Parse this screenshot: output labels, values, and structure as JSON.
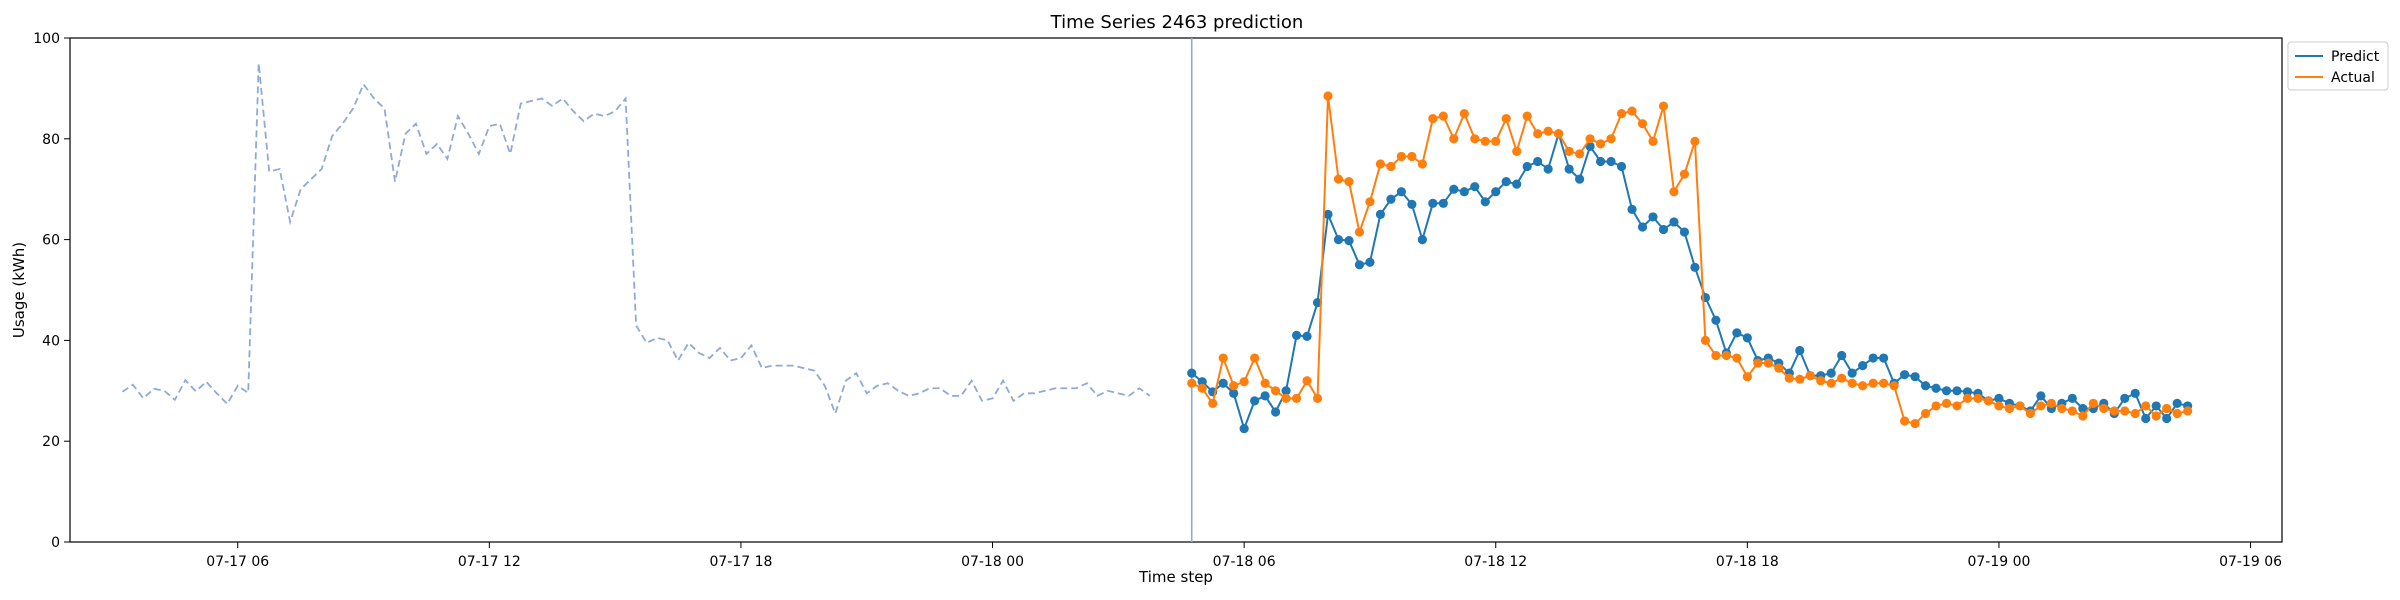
{
  "chart_data": {
    "type": "line",
    "title": "Time Series 2463 prediction",
    "xlabel": "Time step",
    "ylabel": "Usage (kWh)",
    "ylim": [
      0,
      100
    ],
    "xlim": [
      "2024-07-17 02:00",
      "2024-07-19 06:45"
    ],
    "y_ticks": [
      0,
      20,
      40,
      60,
      80,
      100
    ],
    "x_ticks": [
      {
        "t": "2024-07-17 06:00",
        "label": "07-17 06"
      },
      {
        "t": "2024-07-17 12:00",
        "label": "07-17 12"
      },
      {
        "t": "2024-07-17 18:00",
        "label": "07-17 18"
      },
      {
        "t": "2024-07-18 00:00",
        "label": "07-18 00"
      },
      {
        "t": "2024-07-18 06:00",
        "label": "07-18 06"
      },
      {
        "t": "2024-07-18 12:00",
        "label": "07-18 12"
      },
      {
        "t": "2024-07-18 18:00",
        "label": "07-18 18"
      },
      {
        "t": "2024-07-19 00:00",
        "label": "07-19 00"
      },
      {
        "t": "2024-07-19 06:00",
        "label": "07-19 06"
      }
    ],
    "grid": false,
    "legend_position": "top-right",
    "forecast_start": "2024-07-18 04:45",
    "history": {
      "start": "2024-07-17 03:15",
      "step_minutes": 15,
      "values": [
        29.8,
        31.2,
        28.5,
        30.4,
        30.0,
        28.2,
        32.1,
        29.9,
        31.8,
        29.5,
        27.4,
        31.0,
        29.6,
        95.0,
        73.5,
        74.0,
        63.5,
        70.0,
        72.0,
        74.0,
        80.5,
        83.0,
        86.0,
        90.8,
        88.0,
        86.0,
        71.5,
        81.0,
        83.0,
        77.0,
        79.0,
        76.0,
        84.5,
        81.0,
        77.0,
        82.5,
        83.0,
        77.0,
        87.0,
        87.5,
        88.0,
        86.5,
        88.0,
        85.5,
        83.5,
        85.0,
        84.5,
        85.5,
        88.0,
        43.0,
        39.5,
        40.5,
        40.0,
        36.0,
        39.5,
        37.5,
        36.5,
        38.5,
        36.0,
        36.5,
        39.0,
        34.5,
        35.0,
        35.0,
        35.0,
        34.5,
        34.0,
        31.0,
        25.5,
        32.0,
        33.5,
        29.5,
        31.0,
        31.5,
        30.0,
        29.0,
        29.5,
        30.5,
        30.5,
        29.0,
        29.0,
        32.0,
        28.0,
        28.5,
        32.0,
        28.0,
        29.5,
        29.5,
        30.0,
        30.5,
        30.5,
        30.5,
        31.5,
        29.0,
        30.0,
        29.5,
        29.0,
        30.5,
        29.0
      ]
    },
    "series": [
      {
        "name": "Predict",
        "color": "#1f77b4",
        "start": "2024-07-18 04:45",
        "step_minutes": 15,
        "values": [
          33.5,
          31.8,
          29.8,
          31.5,
          29.5,
          22.5,
          28.0,
          29.0,
          25.8,
          30.0,
          41.0,
          40.8,
          47.5,
          65.0,
          60.0,
          59.8,
          55.0,
          55.5,
          65.0,
          68.0,
          69.5,
          67.0,
          60.0,
          67.2,
          67.2,
          70.0,
          69.5,
          70.5,
          67.5,
          69.5,
          71.5,
          71.0,
          74.5,
          75.5,
          74.0,
          81.0,
          74.0,
          72.0,
          78.5,
          75.5,
          75.5,
          74.5,
          66.0,
          62.5,
          64.5,
          62.0,
          63.5,
          61.5,
          54.5,
          48.5,
          44.0,
          37.5,
          41.5,
          40.5,
          36.0,
          36.5,
          35.5,
          33.5,
          38.0,
          33.0,
          33.0,
          33.5,
          37.0,
          33.5,
          35.0,
          36.5,
          36.5,
          31.5,
          33.2,
          32.8,
          31.0,
          30.5,
          30.0,
          30.0,
          29.8,
          29.5,
          28.0,
          28.5,
          27.5,
          27.0,
          26.0,
          29.0,
          26.5,
          27.5,
          28.5,
          26.5,
          26.5,
          27.5,
          25.5,
          28.5,
          29.5,
          24.5,
          27.0,
          24.5,
          27.5,
          27.0
        ]
      },
      {
        "name": "Actual",
        "color": "#ff7f0e",
        "start": "2024-07-18 04:45",
        "step_minutes": 15,
        "values": [
          31.5,
          30.5,
          27.5,
          36.5,
          31.0,
          31.8,
          36.5,
          31.5,
          30.0,
          28.5,
          28.5,
          32.0,
          28.5,
          88.5,
          72.0,
          71.5,
          61.5,
          67.5,
          75.0,
          74.5,
          76.5,
          76.5,
          75.0,
          84.0,
          84.5,
          80.0,
          85.0,
          80.0,
          79.5,
          79.5,
          84.0,
          77.5,
          84.5,
          81.0,
          81.5,
          81.0,
          77.5,
          77.0,
          80.0,
          79.0,
          80.0,
          85.0,
          85.5,
          83.0,
          79.5,
          86.5,
          69.5,
          73.0,
          79.5,
          40.0,
          37.0,
          37.0,
          36.5,
          32.8,
          35.5,
          35.5,
          34.5,
          32.5,
          32.3,
          33.0,
          32.0,
          31.5,
          32.5,
          31.5,
          31.0,
          31.5,
          31.5,
          31.0,
          24.0,
          23.5,
          25.5,
          27.0,
          27.5,
          27.0,
          28.5,
          28.5,
          28.0,
          27.0,
          26.5,
          27.0,
          25.5,
          27.0,
          27.5,
          26.5,
          26.0,
          25.0,
          27.5,
          26.5,
          26.0,
          26.0,
          25.5,
          27.0,
          25.0,
          26.5,
          25.5,
          26.0
        ]
      }
    ],
    "colors": {
      "history": "#8eaad6",
      "forecast_line": "#8eaad6"
    }
  }
}
